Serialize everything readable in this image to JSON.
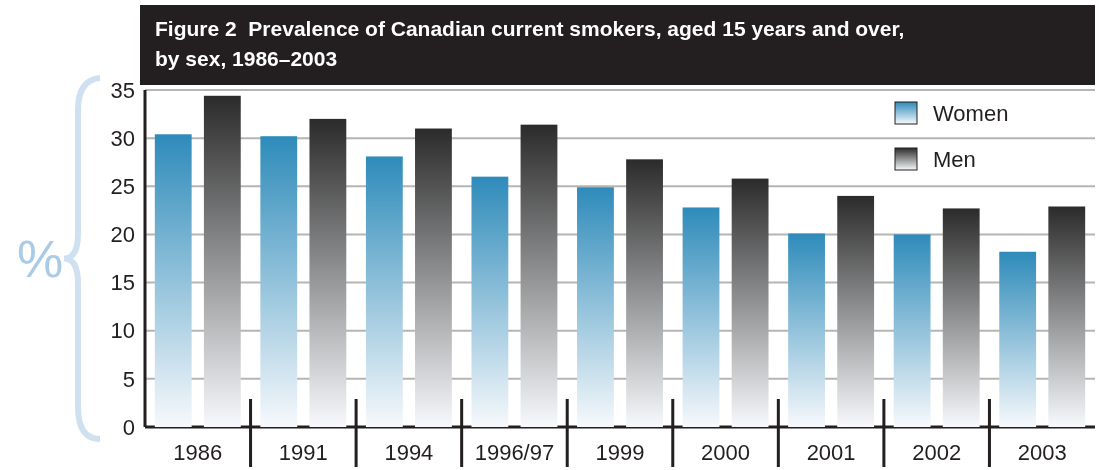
{
  "chart_data": {
    "type": "bar",
    "title": "Figure 2  Prevalence of Canadian current smokers, aged 15 years and over, by sex, 1986–2003",
    "ylabel": "%",
    "categories": [
      "1986",
      "1991",
      "1994",
      "1996/97",
      "1999",
      "2000",
      "2001",
      "2002",
      "2003"
    ],
    "series": [
      {
        "name": "Women",
        "color": "#2e8bba",
        "values": [
          30.4,
          30.2,
          28.1,
          26.0,
          24.9,
          22.8,
          20.1,
          20.0,
          18.2
        ]
      },
      {
        "name": "Men",
        "color": "#2b2b2b",
        "values": [
          34.4,
          32.0,
          31.0,
          31.4,
          27.8,
          25.8,
          24.0,
          22.7,
          22.9
        ]
      }
    ],
    "ylim": [
      0,
      35
    ],
    "yticks": [
      0,
      5,
      10,
      15,
      20,
      25,
      30,
      35
    ],
    "grid": "y",
    "legend": "top right"
  }
}
